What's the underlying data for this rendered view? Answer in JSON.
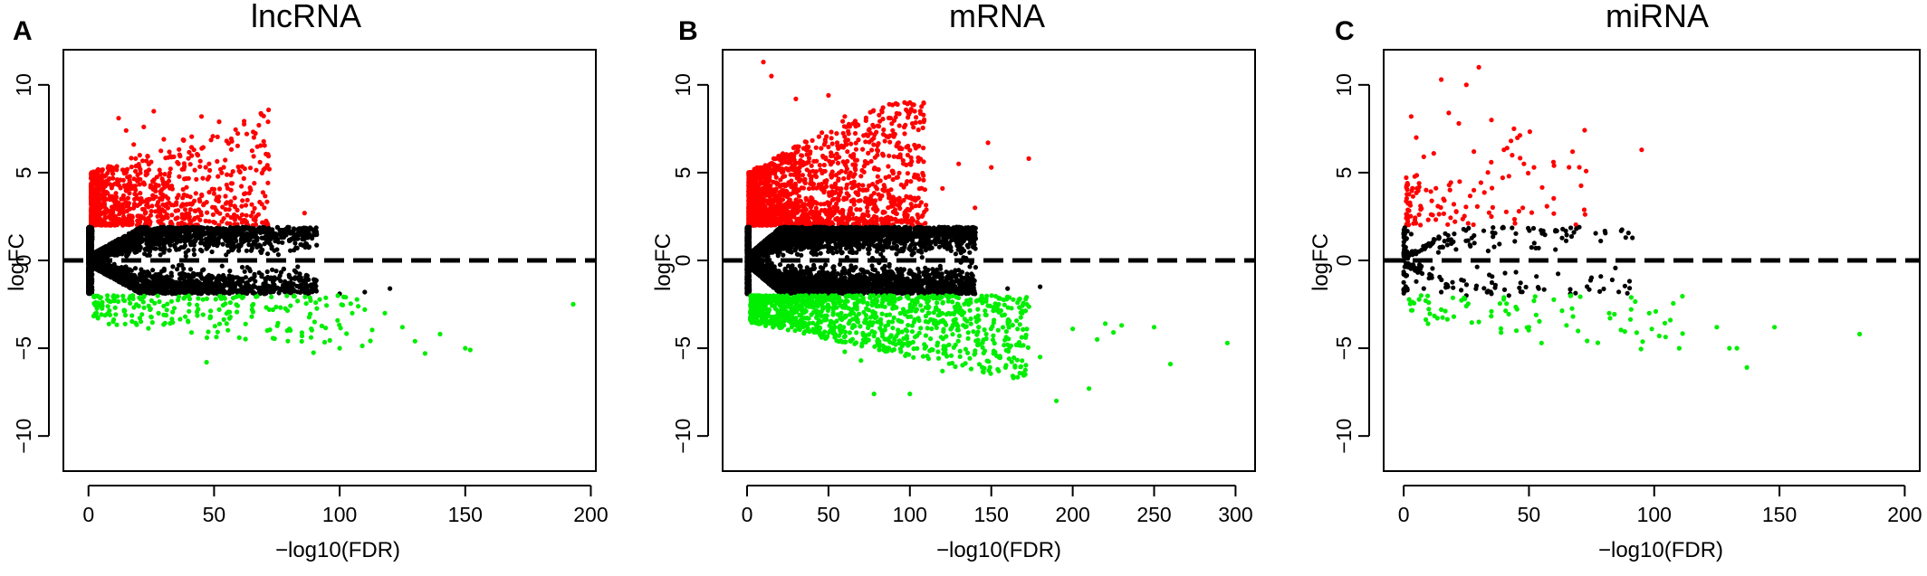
{
  "colors": {
    "up": "#ff0000",
    "ns": "#000000",
    "down": "#00ee00",
    "axis": "#000000",
    "background": "#ffffff"
  },
  "chart_data": [
    {
      "type": "scatter",
      "panel_label": "A",
      "title": "lncRNA",
      "xlabel": "−log10(FDR)",
      "ylabel": "logFC",
      "xlim": [
        -10,
        202
      ],
      "ylim": [
        -12,
        12
      ],
      "xticks": [
        0,
        50,
        100,
        150,
        200
      ],
      "yticks": [
        -10,
        -5,
        0,
        5,
        10
      ],
      "xtick_labels": [
        "0",
        "50",
        "100",
        "150",
        "200"
      ],
      "ytick_labels": [
        "−10",
        "−5",
        "0",
        "5",
        "10"
      ],
      "hline": 0,
      "grid": false,
      "series": [
        {
          "class": "up",
          "density": 900,
          "points": [
            [
              5,
              3.2
            ],
            [
              8,
              4.6
            ],
            [
              12,
              8.1
            ],
            [
              15,
              7.4
            ],
            [
              18,
              6.6
            ],
            [
              22,
              7.6
            ],
            [
              26,
              8.5
            ],
            [
              30,
              6.9
            ],
            [
              34,
              5.9
            ],
            [
              38,
              5.2
            ],
            [
              42,
              6.3
            ],
            [
              45,
              8.2
            ],
            [
              48,
              5.5
            ],
            [
              52,
              7.9
            ],
            [
              55,
              4.3
            ],
            [
              60,
              5.1
            ],
            [
              63,
              7.2
            ],
            [
              66,
              4.4
            ],
            [
              72,
              5.2
            ],
            [
              86,
              2.7
            ],
            [
              20,
              3.5
            ],
            [
              25,
              2.8
            ],
            [
              35,
              3.3
            ],
            [
              40,
              2.4
            ],
            [
              50,
              3.8
            ],
            [
              58,
              2.6
            ],
            [
              70,
              3.0
            ]
          ]
        },
        {
          "class": "ns",
          "density": 3500,
          "points": [
            [
              40,
              1.6
            ],
            [
              50,
              1.7
            ],
            [
              60,
              -1.8
            ],
            [
              70,
              -1.9
            ],
            [
              85,
              -1.7
            ],
            [
              100,
              -1.9
            ],
            [
              110,
              -1.8
            ],
            [
              120,
              -1.6
            ],
            [
              30,
              1.9
            ]
          ]
        },
        {
          "class": "down",
          "density": 220,
          "points": [
            [
              10,
              -2.3
            ],
            [
              20,
              -2.6
            ],
            [
              30,
              -3.1
            ],
            [
              40,
              -2.9
            ],
            [
              47,
              -5.8
            ],
            [
              55,
              -3.6
            ],
            [
              60,
              -4.4
            ],
            [
              65,
              -3.2
            ],
            [
              72,
              -2.8
            ],
            [
              80,
              -3.9
            ],
            [
              85,
              -4.3
            ],
            [
              90,
              -3.5
            ],
            [
              100,
              -5.0
            ],
            [
              105,
              -3.0
            ],
            [
              110,
              -2.8
            ],
            [
              118,
              -3.0
            ],
            [
              125,
              -3.8
            ],
            [
              130,
              -4.6
            ],
            [
              134,
              -5.3
            ],
            [
              140,
              -4.2
            ],
            [
              150,
              -5.0
            ],
            [
              152,
              -5.1
            ],
            [
              193,
              -2.5
            ]
          ]
        }
      ]
    },
    {
      "type": "scatter",
      "panel_label": "B",
      "title": "mRNA",
      "xlabel": "−log10(FDR)",
      "ylabel": "logFC",
      "xlim": [
        -15,
        312
      ],
      "ylim": [
        -12,
        12
      ],
      "xticks": [
        0,
        50,
        100,
        150,
        200,
        250,
        300
      ],
      "xtick_labels": [
        "0",
        "50",
        "100",
        "150",
        "200",
        "250",
        "300"
      ],
      "yticks": [
        -10,
        -5,
        0,
        5,
        10
      ],
      "ytick_labels": [
        "−10",
        "−5",
        "0",
        "5",
        "10"
      ],
      "hline": 0,
      "grid": false,
      "series": [
        {
          "class": "up",
          "density": 1700,
          "points": [
            [
              10,
              11.3
            ],
            [
              15,
              10.5
            ],
            [
              30,
              9.2
            ],
            [
              50,
              9.4
            ],
            [
              60,
              8.2
            ],
            [
              80,
              6.0
            ],
            [
              100,
              5.5
            ],
            [
              105,
              6.5
            ],
            [
              120,
              4.1
            ],
            [
              130,
              5.5
            ],
            [
              140,
              3.0
            ],
            [
              148,
              6.7
            ],
            [
              150,
              5.3
            ],
            [
              173,
              5.8
            ],
            [
              90,
              3.5
            ],
            [
              70,
              4.8
            ]
          ]
        },
        {
          "class": "ns",
          "density": 6000,
          "points": [
            [
              60,
              1.8
            ],
            [
              70,
              1.6
            ],
            [
              80,
              -1.8
            ],
            [
              100,
              -1.9
            ],
            [
              120,
              -1.7
            ],
            [
              140,
              -1.9
            ],
            [
              160,
              -1.6
            ],
            [
              180,
              -1.5
            ]
          ]
        },
        {
          "class": "down",
          "density": 1200,
          "points": [
            [
              60,
              -5.2
            ],
            [
              70,
              -5.7
            ],
            [
              78,
              -7.6
            ],
            [
              100,
              -7.6
            ],
            [
              120,
              -6.3
            ],
            [
              140,
              -5.3
            ],
            [
              160,
              -4.8
            ],
            [
              180,
              -5.5
            ],
            [
              190,
              -8.0
            ],
            [
              200,
              -3.9
            ],
            [
              210,
              -7.3
            ],
            [
              215,
              -4.5
            ],
            [
              220,
              -3.6
            ],
            [
              225,
              -4.1
            ],
            [
              230,
              -3.7
            ],
            [
              250,
              -3.8
            ],
            [
              260,
              -5.9
            ],
            [
              295,
              -4.7
            ]
          ]
        }
      ]
    },
    {
      "type": "scatter",
      "panel_label": "C",
      "title": "miRNA",
      "xlabel": "−log10(FDR)",
      "ylabel": "logFC",
      "xlim": [
        -8,
        206
      ],
      "ylim": [
        -12,
        12
      ],
      "xticks": [
        0,
        50,
        100,
        150,
        200
      ],
      "xtick_labels": [
        "0",
        "50",
        "100",
        "150",
        "200"
      ],
      "yticks": [
        -10,
        -5,
        0,
        5,
        10
      ],
      "ytick_labels": [
        "−10",
        "−5",
        "0",
        "5",
        "10"
      ],
      "hline": 0,
      "grid": false,
      "series": [
        {
          "class": "up",
          "density": 110,
          "points": [
            [
              3,
              8.2
            ],
            [
              5,
              7.0
            ],
            [
              8,
              5.9
            ],
            [
              12,
              6.1
            ],
            [
              15,
              10.3
            ],
            [
              18,
              8.4
            ],
            [
              22,
              7.8
            ],
            [
              25,
              10.0
            ],
            [
              28,
              6.2
            ],
            [
              30,
              11.0
            ],
            [
              35,
              8.0
            ],
            [
              40,
              6.3
            ],
            [
              44,
              7.5
            ],
            [
              48,
              5.5
            ],
            [
              52,
              5.3
            ],
            [
              60,
              5.4
            ],
            [
              95,
              6.3
            ],
            [
              20,
              3.2
            ],
            [
              28,
              4.0
            ],
            [
              35,
              2.5
            ],
            [
              42,
              4.8
            ],
            [
              46,
              2.8
            ]
          ]
        },
        {
          "class": "ns",
          "density": 250,
          "points": [
            [
              3,
              1.5
            ],
            [
              5,
              -1.2
            ],
            [
              8,
              -1.6
            ],
            [
              15,
              -1.8
            ],
            [
              25,
              -2.0
            ],
            [
              35,
              -1.9
            ],
            [
              42,
              -2.0
            ]
          ]
        },
        {
          "class": "down",
          "density": 70,
          "points": [
            [
              10,
              -2.4
            ],
            [
              15,
              -2.8
            ],
            [
              20,
              -3.2
            ],
            [
              25,
              -2.6
            ],
            [
              30,
              -3.5
            ],
            [
              35,
              -2.9
            ],
            [
              40,
              -2.1
            ],
            [
              45,
              -4.0
            ],
            [
              50,
              -3.8
            ],
            [
              55,
              -4.7
            ],
            [
              65,
              -3.7
            ],
            [
              82,
              -3.0
            ],
            [
              98,
              -3.0
            ],
            [
              102,
              -4.3
            ],
            [
              110,
              -5.0
            ],
            [
              125,
              -3.8
            ],
            [
              130,
              -5.0
            ],
            [
              133,
              -5.0
            ],
            [
              137,
              -6.1
            ],
            [
              148,
              -3.8
            ],
            [
              182,
              -4.2
            ]
          ]
        }
      ]
    }
  ]
}
